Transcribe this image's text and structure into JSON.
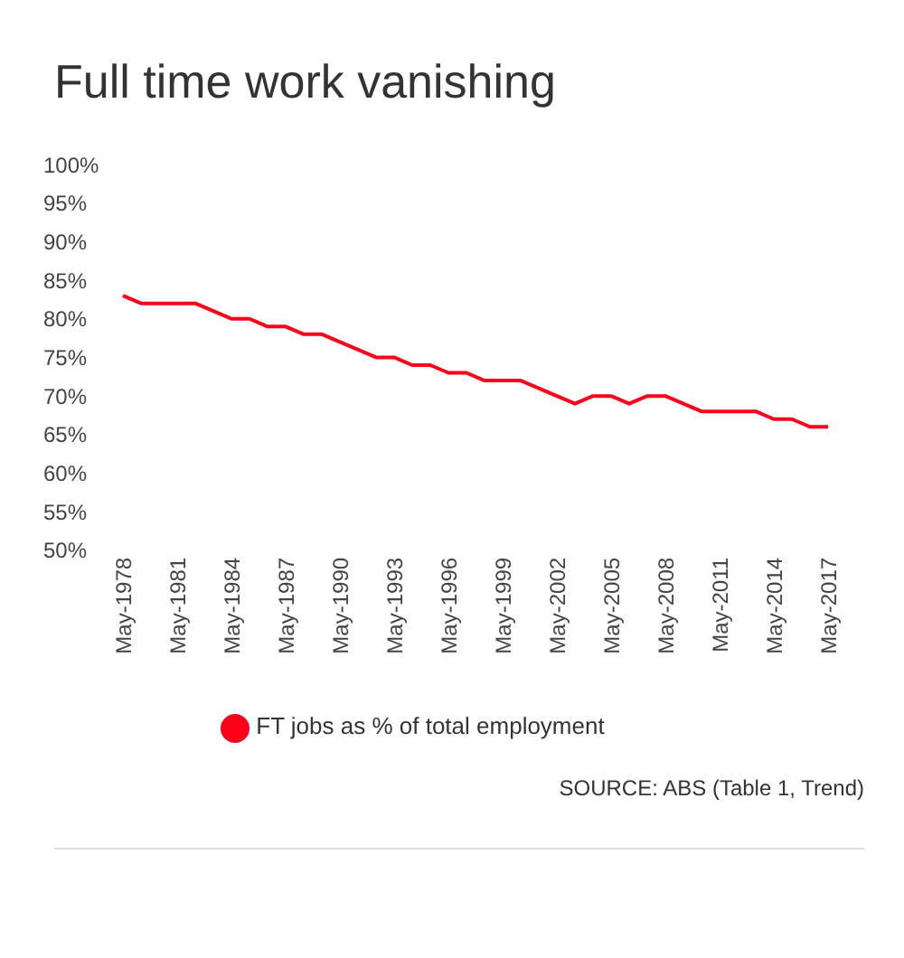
{
  "chart_data": {
    "type": "line",
    "title": "Full time work vanishing",
    "categories": [
      "May-1978",
      null,
      null,
      "May-1981",
      null,
      null,
      "May-1984",
      null,
      null,
      "May-1987",
      null,
      null,
      "May-1990",
      null,
      null,
      "May-1993",
      null,
      null,
      "May-1996",
      null,
      null,
      "May-1999",
      null,
      null,
      "May-2002",
      null,
      null,
      "May-2005",
      null,
      null,
      "May-2008",
      null,
      null,
      "May-2011",
      null,
      null,
      "May-2014",
      null,
      null,
      "May-2017"
    ],
    "series": [
      {
        "name": "FT jobs as % of total employment",
        "color": "#ff0019",
        "values": [
          83,
          82,
          82,
          82,
          82,
          81,
          80,
          80,
          79,
          79,
          78,
          78,
          77,
          76,
          75,
          75,
          74,
          74,
          73,
          73,
          72,
          72,
          72,
          71,
          70,
          69,
          70,
          70,
          69,
          70,
          70,
          69,
          68,
          68,
          68,
          68,
          67,
          67,
          66,
          66
        ]
      }
    ],
    "ylim": [
      50,
      100
    ],
    "yticks": [
      {
        "value": 50,
        "label": "50%"
      },
      {
        "value": 55,
        "label": "55%"
      },
      {
        "value": 60,
        "label": "60%"
      },
      {
        "value": 65,
        "label": "65%"
      },
      {
        "value": 70,
        "label": "70%"
      },
      {
        "value": 75,
        "label": "75%"
      },
      {
        "value": 80,
        "label": "80%"
      },
      {
        "value": 85,
        "label": "85%"
      },
      {
        "value": 90,
        "label": "90%"
      },
      {
        "value": 95,
        "label": "95%"
      },
      {
        "value": 100,
        "label": "100%"
      }
    ],
    "grid": false,
    "legend": "bottom",
    "marker": "none",
    "line_style": "solid",
    "annotations": [
      "SOURCE: ABS (Table 1, Trend)"
    ]
  }
}
